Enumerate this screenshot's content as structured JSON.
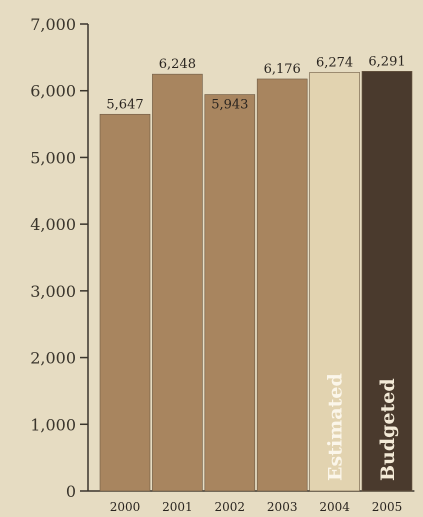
{
  "chart_data": {
    "type": "bar",
    "title": "",
    "xlabel": "",
    "ylabel": "",
    "categories": [
      "2000",
      "2001",
      "2002",
      "2003",
      "2004",
      "2005"
    ],
    "values": [
      5647,
      6248,
      5943,
      6176,
      6274,
      6291
    ],
    "value_labels": [
      "5,647",
      "6,248",
      "5,943",
      "6,176",
      "6,274",
      "6,291"
    ],
    "bar_notes": [
      "",
      "",
      "",
      "",
      "Estimated",
      "Budgeted"
    ],
    "ylim": [
      0,
      7000
    ],
    "yticks": [
      0,
      1000,
      2000,
      3000,
      4000,
      5000,
      6000,
      7000
    ],
    "ytick_labels": [
      "0",
      "1,000",
      "2,000",
      "3,000",
      "4,000",
      "5,000",
      "6,000",
      "7,000"
    ],
    "grid": false,
    "colors": {
      "actual": "#a8855f",
      "estimated": "#e2d3b0",
      "budgeted": "#4a3a2d",
      "axis": "#3a352c",
      "background": "#e6dcc2"
    }
  }
}
